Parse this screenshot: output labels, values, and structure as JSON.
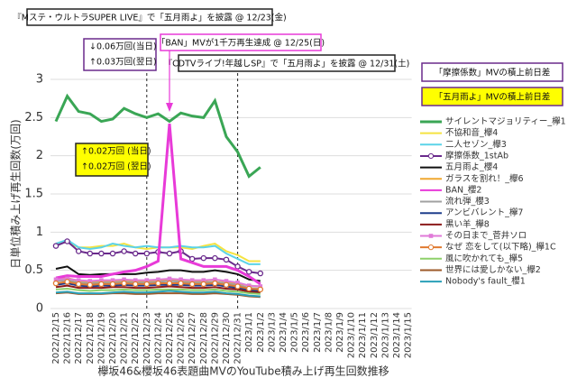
{
  "chart_data": {
    "type": "line",
    "title": "欅坂46&櫻坂46表題曲MVのYouTube積み上げ再生回数推移",
    "y_label": "日単位積み上げ再生回数(万回)",
    "categories": [
      "2022/12/15",
      "2022/12/16",
      "2022/12/17",
      "2022/12/18",
      "2022/12/19",
      "2022/12/20",
      "2022/12/21",
      "2022/12/22",
      "2022/12/23",
      "2022/12/24",
      "2022/12/25",
      "2022/12/26",
      "2022/12/27",
      "2022/12/28",
      "2022/12/29",
      "2022/12/30",
      "2022/12/31",
      "2023/1/1",
      "2023/1/2",
      "2023/1/3",
      "2023/1/4",
      "2023/1/5",
      "2023/1/6",
      "2023/1/7",
      "2023/1/8",
      "2023/1/9",
      "2023/1/10",
      "2023/1/11",
      "2023/1/12",
      "2023/1/13",
      "2023/1/14",
      "2023/1/15"
    ],
    "ylim": [
      0,
      3
    ],
    "yticks": [
      0,
      0.5,
      1,
      1.5,
      2,
      2.5,
      3
    ],
    "grid": true,
    "vlines": [
      "2022/12/23",
      "2022/12/31"
    ],
    "series": [
      {
        "name": "サイレントマジョリティー_欅1",
        "color": "#3aa655",
        "values": [
          2.45,
          2.78,
          2.58,
          2.55,
          2.45,
          2.48,
          2.62,
          2.55,
          2.5,
          2.55,
          2.45,
          2.56,
          2.52,
          2.5,
          2.72,
          2.25,
          2.05,
          1.73,
          1.85,
          null,
          null,
          null,
          null,
          null,
          null,
          null,
          null,
          null,
          null,
          null,
          null,
          null
        ]
      },
      {
        "name": "不協和音_欅4",
        "color": "#f5e342",
        "values": [
          0.85,
          0.87,
          0.8,
          0.8,
          0.82,
          0.82,
          0.85,
          0.8,
          0.78,
          0.8,
          0.8,
          0.8,
          0.78,
          0.82,
          0.85,
          0.75,
          0.7,
          0.62,
          0.62,
          null,
          null,
          null,
          null,
          null,
          null,
          null,
          null,
          null,
          null,
          null,
          null,
          null
        ]
      },
      {
        "name": "二人セゾン_欅3",
        "color": "#5bd3e8",
        "values": [
          0.85,
          0.9,
          0.8,
          0.78,
          0.8,
          0.85,
          0.82,
          0.8,
          0.82,
          0.8,
          0.8,
          0.82,
          0.8,
          0.8,
          0.82,
          0.72,
          0.65,
          0.58,
          0.58,
          null,
          null,
          null,
          null,
          null,
          null,
          null,
          null,
          null,
          null,
          null,
          null,
          null
        ]
      },
      {
        "name": "摩擦係数_1stAb",
        "color": "#6a2a8c",
        "marker": "circle",
        "values": [
          0.82,
          0.88,
          0.75,
          0.72,
          0.72,
          0.72,
          0.75,
          0.72,
          0.72,
          0.74,
          0.72,
          0.75,
          0.65,
          0.66,
          0.66,
          0.64,
          0.55,
          0.48,
          0.46,
          null,
          null,
          null,
          null,
          null,
          null,
          null,
          null,
          null,
          null,
          null,
          null,
          null
        ]
      },
      {
        "name": "五月雨よ_櫻4",
        "color": "#111111",
        "values": [
          0.52,
          0.55,
          0.45,
          0.44,
          0.45,
          0.45,
          0.45,
          0.45,
          0.47,
          0.48,
          0.5,
          0.5,
          0.48,
          0.48,
          0.5,
          0.48,
          0.45,
          0.38,
          0.36,
          null,
          null,
          null,
          null,
          null,
          null,
          null,
          null,
          null,
          null,
          null,
          null,
          null
        ]
      },
      {
        "name": "ガラスを割れ！_欅6",
        "color": "#f0a830",
        "values": [
          0.38,
          0.4,
          0.36,
          0.35,
          0.36,
          0.36,
          0.37,
          0.36,
          0.36,
          0.37,
          0.38,
          0.37,
          0.36,
          0.36,
          0.38,
          0.35,
          0.33,
          0.3,
          0.29,
          null,
          null,
          null,
          null,
          null,
          null,
          null,
          null,
          null,
          null,
          null,
          null,
          null
        ]
      },
      {
        "name": "BAN_櫻2",
        "color": "#e83ad8",
        "values": [
          0.4,
          0.43,
          0.42,
          0.42,
          0.42,
          0.45,
          0.48,
          0.5,
          0.55,
          0.62,
          2.42,
          0.65,
          0.6,
          0.55,
          0.55,
          0.55,
          0.5,
          0.42,
          0.32,
          null,
          null,
          null,
          null,
          null,
          null,
          null,
          null,
          null,
          null,
          null,
          null,
          null
        ]
      },
      {
        "name": "流れ弾_櫻3",
        "color": "#a0a0a0",
        "values": [
          0.36,
          0.37,
          0.34,
          0.33,
          0.34,
          0.34,
          0.35,
          0.34,
          0.34,
          0.35,
          0.36,
          0.35,
          0.34,
          0.34,
          0.35,
          0.33,
          0.31,
          0.27,
          0.26,
          null,
          null,
          null,
          null,
          null,
          null,
          null,
          null,
          null,
          null,
          null,
          null,
          null
        ]
      },
      {
        "name": "アンビバレント_欅7",
        "color": "#1f3e8c",
        "values": [
          0.31,
          0.33,
          0.3,
          0.29,
          0.3,
          0.3,
          0.31,
          0.3,
          0.3,
          0.31,
          0.31,
          0.31,
          0.3,
          0.3,
          0.31,
          0.29,
          0.27,
          0.24,
          0.23,
          null,
          null,
          null,
          null,
          null,
          null,
          null,
          null,
          null,
          null,
          null,
          null,
          null
        ]
      },
      {
        "name": "黒い羊_欅8",
        "color": "#8b1a1a",
        "values": [
          0.28,
          0.3,
          0.27,
          0.27,
          0.27,
          0.28,
          0.28,
          0.27,
          0.27,
          0.28,
          0.29,
          0.28,
          0.27,
          0.27,
          0.28,
          0.26,
          0.25,
          0.22,
          0.21,
          null,
          null,
          null,
          null,
          null,
          null,
          null,
          null,
          null,
          null,
          null,
          null,
          null
        ]
      },
      {
        "name": "その日まで_菅井ソロ",
        "color": "#e07ad8",
        "marker": "square",
        "values": [
          0.38,
          0.39,
          0.37,
          0.36,
          0.37,
          0.37,
          0.38,
          0.37,
          0.37,
          0.38,
          0.39,
          0.38,
          0.37,
          0.37,
          0.38,
          0.36,
          0.34,
          0.3,
          0.29,
          null,
          null,
          null,
          null,
          null,
          null,
          null,
          null,
          null,
          null,
          null,
          null,
          null
        ]
      },
      {
        "name": "なぜ 恋をして(以下略)_欅1C",
        "color": "#e07a30",
        "marker": "circle",
        "values": [
          0.33,
          0.35,
          0.32,
          0.31,
          0.32,
          0.32,
          0.33,
          0.32,
          0.32,
          0.33,
          0.33,
          0.33,
          0.32,
          0.32,
          0.33,
          0.31,
          0.29,
          0.26,
          0.25,
          null,
          null,
          null,
          null,
          null,
          null,
          null,
          null,
          null,
          null,
          null,
          null,
          null
        ]
      },
      {
        "name": "風に吹かれても_欅5",
        "color": "#8ed06a",
        "values": [
          0.25,
          0.26,
          0.24,
          0.23,
          0.24,
          0.24,
          0.25,
          0.24,
          0.24,
          0.25,
          0.25,
          0.25,
          0.24,
          0.24,
          0.25,
          0.23,
          0.22,
          0.2,
          0.19,
          null,
          null,
          null,
          null,
          null,
          null,
          null,
          null,
          null,
          null,
          null,
          null,
          null
        ]
      },
      {
        "name": "世界には愛しかない_欅2",
        "color": "#9c5a2a",
        "values": [
          0.2,
          0.21,
          0.19,
          0.19,
          0.19,
          0.2,
          0.2,
          0.19,
          0.19,
          0.2,
          0.2,
          0.2,
          0.19,
          0.19,
          0.2,
          0.19,
          0.18,
          0.16,
          0.15,
          null,
          null,
          null,
          null,
          null,
          null,
          null,
          null,
          null,
          null,
          null,
          null,
          null
        ]
      },
      {
        "name": "Nobody's fault_櫻1",
        "color": "#2aa0b8",
        "values": [
          0.21,
          0.22,
          0.2,
          0.2,
          0.2,
          0.21,
          0.22,
          0.21,
          0.21,
          0.22,
          0.23,
          0.22,
          0.21,
          0.21,
          0.22,
          0.2,
          0.19,
          0.17,
          0.16,
          null,
          null,
          null,
          null,
          null,
          null,
          null,
          null,
          null,
          null,
          null,
          null,
          null
        ]
      }
    ],
    "annotations": [
      {
        "text": "『Mステ・ウルトラSUPER LIVE』で「五月雨よ」を披露 @ 12/23(金)"
      },
      {
        "lines": [
          "↓0.06万回(当日)",
          "↑0.03万回(翌日)"
        ]
      },
      {
        "text": "「BAN」MVが1千万再生達成 @ 12/25(日)"
      },
      {
        "text": "『CDTVライブ!年越しSP』で「五月雨よ」を披露 @ 12/31(土)"
      },
      {
        "text": "「摩擦係数」MVの積上前日差"
      },
      {
        "text": "「五月雨よ」MVの積上前日差"
      },
      {
        "lines": [
          "↑0.02万回 (当日)",
          "↑0.02万回 (翌日)"
        ]
      }
    ]
  }
}
